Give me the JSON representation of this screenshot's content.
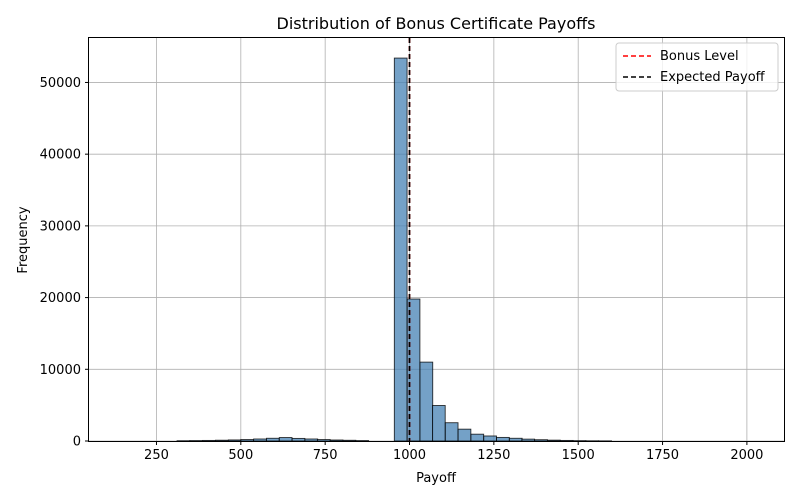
{
  "chart_data": {
    "type": "bar",
    "title": "Distribution of Bonus Certificate Payoffs",
    "xlabel": "Payoff",
    "ylabel": "Frequency",
    "xlim": [
      50,
      2110
    ],
    "ylim": [
      0,
      56200
    ],
    "x_ticks": [
      250,
      500,
      750,
      1000,
      1250,
      1500,
      1750,
      2000
    ],
    "y_ticks": [
      0,
      10000,
      20000,
      30000,
      40000,
      50000
    ],
    "grid": true,
    "bar_color": "#4682b4",
    "bar_alpha": 0.75,
    "bin_width": 37.8,
    "bins": [
      {
        "x": 311,
        "count": 40
      },
      {
        "x": 349,
        "count": 60
      },
      {
        "x": 387,
        "count": 80
      },
      {
        "x": 425,
        "count": 110
      },
      {
        "x": 463,
        "count": 150
      },
      {
        "x": 500,
        "count": 200
      },
      {
        "x": 538,
        "count": 280
      },
      {
        "x": 576,
        "count": 380
      },
      {
        "x": 614,
        "count": 480
      },
      {
        "x": 652,
        "count": 360
      },
      {
        "x": 690,
        "count": 280
      },
      {
        "x": 727,
        "count": 200
      },
      {
        "x": 765,
        "count": 140
      },
      {
        "x": 803,
        "count": 100
      },
      {
        "x": 841,
        "count": 60
      },
      {
        "x": 955,
        "count": 53400
      },
      {
        "x": 993,
        "count": 19800
      },
      {
        "x": 1031,
        "count": 11000
      },
      {
        "x": 1068,
        "count": 4950
      },
      {
        "x": 1106,
        "count": 2550
      },
      {
        "x": 1144,
        "count": 1650
      },
      {
        "x": 1182,
        "count": 950
      },
      {
        "x": 1220,
        "count": 700
      },
      {
        "x": 1258,
        "count": 500
      },
      {
        "x": 1296,
        "count": 380
      },
      {
        "x": 1333,
        "count": 260
      },
      {
        "x": 1371,
        "count": 180
      },
      {
        "x": 1409,
        "count": 120
      },
      {
        "x": 1447,
        "count": 80
      },
      {
        "x": 1485,
        "count": 50
      },
      {
        "x": 1523,
        "count": 30
      },
      {
        "x": 1561,
        "count": 20
      }
    ],
    "reference_lines": [
      {
        "name": "Bonus Level",
        "x": 1000,
        "color": "#ff0000",
        "style": "dashed"
      },
      {
        "name": "Expected Payoff",
        "x": 1000,
        "color": "#000000",
        "style": "dashed"
      }
    ],
    "legend_position": "top-right"
  }
}
